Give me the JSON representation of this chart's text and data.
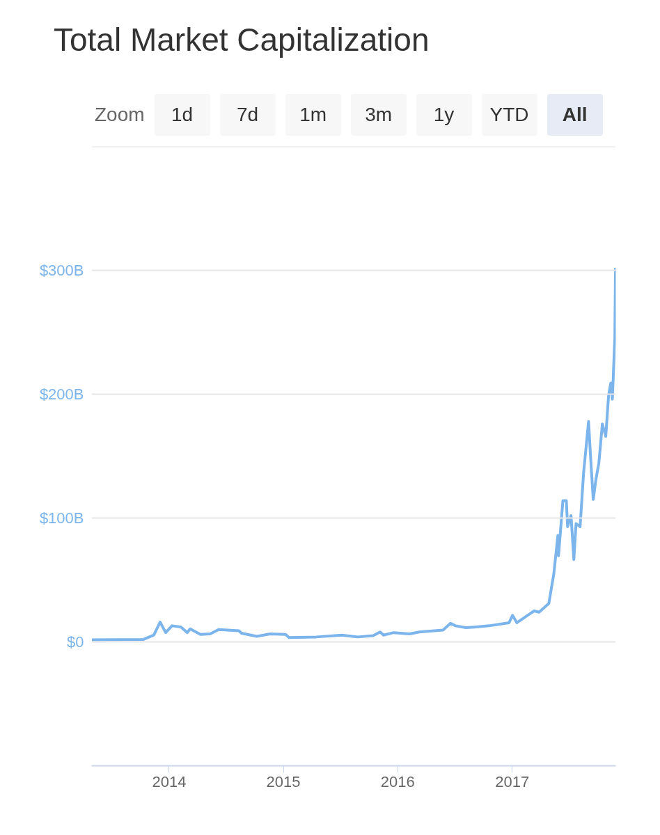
{
  "chart_data": {
    "type": "line",
    "title": "Total Market Capitalization",
    "annotations": [
      "Zoom",
      "1d",
      "7d",
      "1m",
      "3m",
      "1y",
      "YTD",
      "All"
    ],
    "x": [
      "2013-04-29",
      "2013-10-11",
      "2013-11-13",
      "2013-12-03",
      "2013-12-21",
      "2014-01-10",
      "2014-02-08",
      "2014-02-28",
      "2014-03-09",
      "2014-04-11",
      "2014-05-12",
      "2014-06-08",
      "2014-08-12",
      "2014-08-20",
      "2014-10-08",
      "2014-11-20",
      "2015-01-08",
      "2015-01-19",
      "2015-04-16",
      "2015-07-07",
      "2015-08-27",
      "2015-10-15",
      "2015-11-06",
      "2015-11-17",
      "2015-12-19",
      "2016-02-08",
      "2016-03-10",
      "2016-05-25",
      "2016-06-18",
      "2016-07-04",
      "2016-08-06",
      "2016-09-02",
      "2016-10-19",
      "2016-12-22",
      "2017-01-02",
      "2017-01-16",
      "2017-03-12",
      "2017-03-28",
      "2017-04-28",
      "2017-05-14",
      "2017-05-27",
      "2017-05-29",
      "2017-06-12",
      "2017-06-23",
      "2017-06-27",
      "2017-07-08",
      "2017-07-17",
      "2017-07-24",
      "2017-08-06",
      "2017-08-17",
      "2017-09-02",
      "2017-09-09",
      "2017-09-17",
      "2017-09-26",
      "2017-10-05",
      "2017-10-16",
      "2017-10-27",
      "2017-11-05",
      "2017-11-12",
      "2017-11-17",
      "2017-11-25",
      "2017-11-27"
    ],
    "series": [
      {
        "color": "#7cb5ec",
        "values": [
          1.7,
          2,
          5.5,
          16,
          7.5,
          13,
          12,
          7.5,
          10.5,
          6,
          6.5,
          10,
          9,
          7,
          4.5,
          6.5,
          6,
          3.5,
          4,
          5.5,
          4,
          5,
          8,
          5.5,
          7.5,
          6.5,
          8,
          9.5,
          15,
          13,
          11.5,
          12,
          13,
          15.5,
          21.5,
          15.5,
          25,
          24,
          31,
          55,
          86,
          69.5,
          114,
          114,
          93,
          102,
          66.5,
          95.5,
          93,
          136,
          178,
          147,
          115,
          132,
          144.5,
          176,
          166,
          199,
          209,
          196,
          246,
          302
        ]
      }
    ],
    "xlim": [
      "2013-04-28",
      "2017-11-28"
    ],
    "xticks": [
      {
        "value": "2014-01-01",
        "label": "2014"
      },
      {
        "value": "2015-01-01",
        "label": "2015"
      },
      {
        "value": "2016-01-01",
        "label": "2016"
      },
      {
        "value": "2017-01-01",
        "label": "2017"
      }
    ],
    "ylim": [
      -100,
      400
    ],
    "yticks": [
      {
        "value": 0,
        "label": "$0"
      },
      {
        "value": 100,
        "label": "$100B"
      },
      {
        "value": 200,
        "label": "$200B"
      },
      {
        "value": 300,
        "label": "$300B"
      },
      {
        "value": 400,
        "label": null
      }
    ],
    "grid": "y",
    "marker": "none",
    "line_style": "solid"
  }
}
